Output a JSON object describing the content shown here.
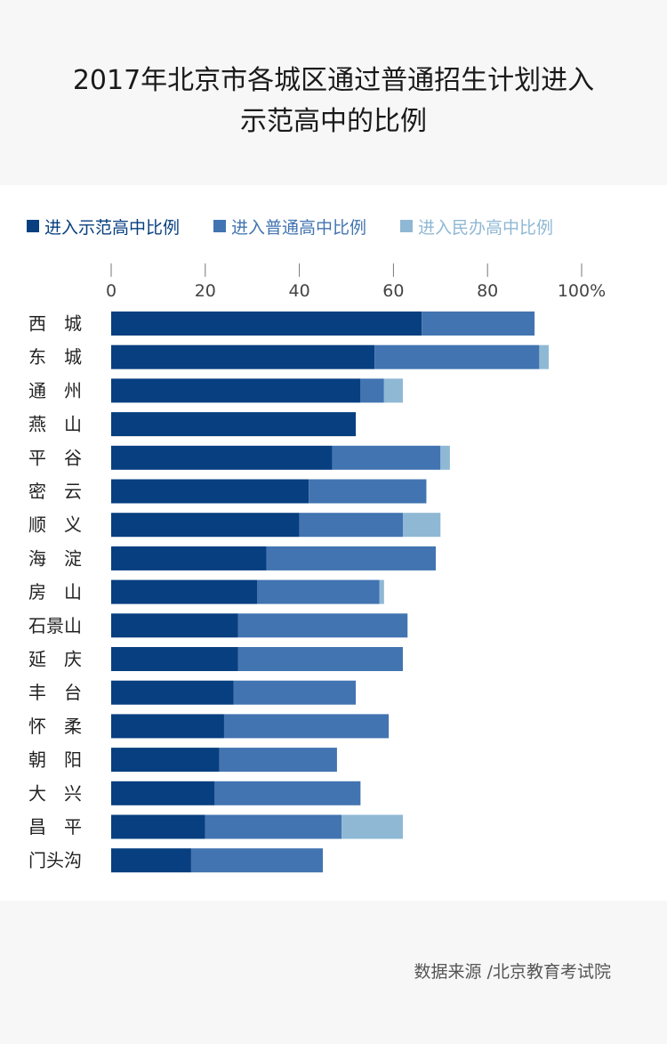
{
  "title_line1": "2017年北京市各城区通过普通招生计划进入",
  "title_line2": "示范高中的比例",
  "source": "数据来源 /北京教育考试院",
  "colors": {
    "s1": "#073f80",
    "s2": "#4274b1",
    "s3": "#8fb8d4"
  },
  "chart_data": {
    "type": "bar",
    "orientation": "horizontal",
    "stacked": true,
    "categories": [
      "西　城",
      "东　城",
      "通　州",
      "燕　山",
      "平　谷",
      "密　云",
      "顺　义",
      "海　淀",
      "房　山",
      "石景山",
      "延　庆",
      "丰　台",
      "怀　柔",
      "朝　阳",
      "大　兴",
      "昌　平",
      "门头沟"
    ],
    "series": [
      {
        "name": "进入示范高中比例",
        "color": "#073f80",
        "values": [
          66,
          56,
          53,
          52,
          47,
          42,
          40,
          33,
          31,
          27,
          27,
          26,
          24,
          23,
          22,
          20,
          17
        ]
      },
      {
        "name": "进入普通高中比例",
        "color": "#4274b1",
        "values": [
          24,
          35,
          5,
          0,
          23,
          25,
          22,
          36,
          26,
          36,
          35,
          26,
          35,
          25,
          31,
          29,
          28
        ]
      },
      {
        "name": "进入民办高中比例",
        "color": "#8fb8d4",
        "values": [
          0,
          2,
          4,
          0,
          2,
          0,
          8,
          0,
          1,
          0,
          0,
          0,
          0,
          0,
          0,
          13,
          0
        ]
      }
    ],
    "x_ticks": [
      "0",
      "20",
      "40",
      "60",
      "80",
      "100%"
    ],
    "xlim": [
      0,
      100
    ],
    "grid": false,
    "legend_position": "top-left"
  }
}
